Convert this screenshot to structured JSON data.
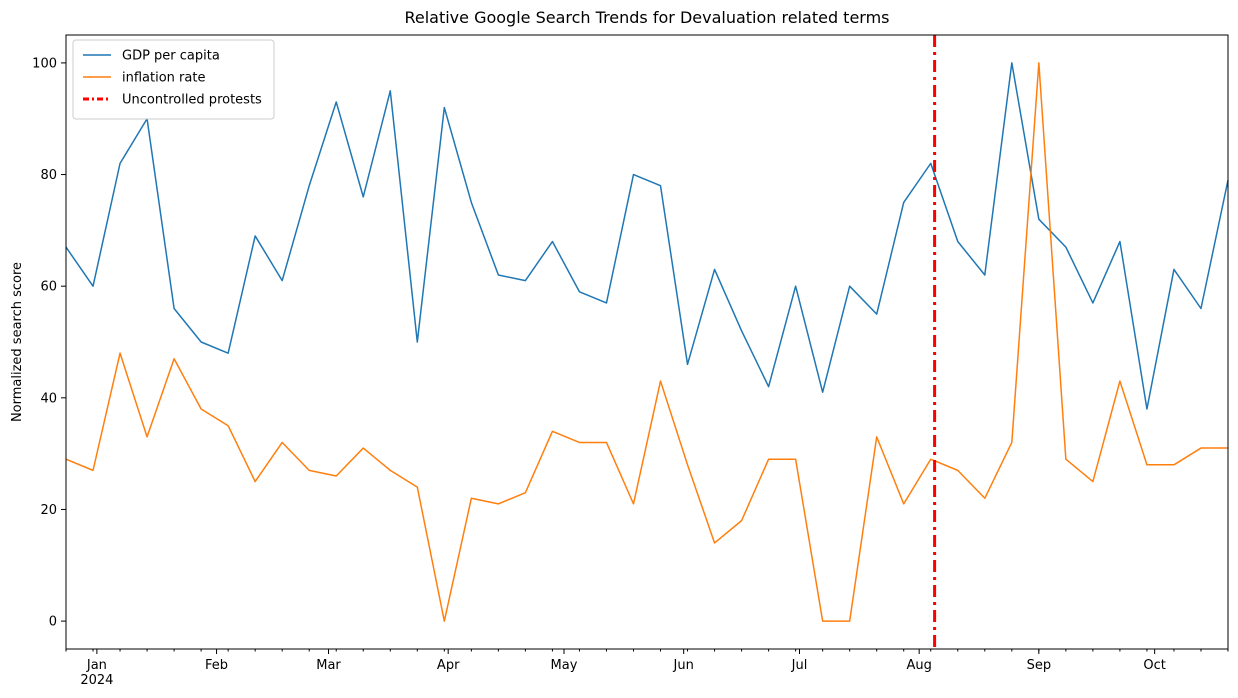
{
  "chart_data": {
    "type": "line",
    "title": "Relative Google Search Trends for Devaluation related terms",
    "xlabel": "",
    "ylabel": "Normalized search score",
    "ylim": [
      -5,
      105
    ],
    "xlim": [
      "2023-12-24",
      "2024-10-20"
    ],
    "y_ticks": [
      0,
      20,
      40,
      60,
      80,
      100
    ],
    "x_ticks": [
      {
        "date": "2024-01-01",
        "label": "Jan",
        "sublabel": "2024"
      },
      {
        "date": "2024-02-01",
        "label": "Feb"
      },
      {
        "date": "2024-03-01",
        "label": "Mar"
      },
      {
        "date": "2024-04-01",
        "label": "Apr"
      },
      {
        "date": "2024-05-01",
        "label": "May"
      },
      {
        "date": "2024-06-01",
        "label": "Jun"
      },
      {
        "date": "2024-07-01",
        "label": "Jul"
      },
      {
        "date": "2024-08-01",
        "label": "Aug"
      },
      {
        "date": "2024-09-01",
        "label": "Sep"
      },
      {
        "date": "2024-10-01",
        "label": "Oct"
      }
    ],
    "x": [
      "2023-12-24",
      "2023-12-31",
      "2024-01-07",
      "2024-01-14",
      "2024-01-21",
      "2024-01-28",
      "2024-02-04",
      "2024-02-11",
      "2024-02-18",
      "2024-02-25",
      "2024-03-03",
      "2024-03-10",
      "2024-03-17",
      "2024-03-24",
      "2024-03-31",
      "2024-04-07",
      "2024-04-14",
      "2024-04-21",
      "2024-04-28",
      "2024-05-05",
      "2024-05-12",
      "2024-05-19",
      "2024-05-26",
      "2024-06-02",
      "2024-06-09",
      "2024-06-16",
      "2024-06-23",
      "2024-06-30",
      "2024-07-07",
      "2024-07-14",
      "2024-07-21",
      "2024-07-28",
      "2024-08-04",
      "2024-08-11",
      "2024-08-18",
      "2024-08-25",
      "2024-09-01",
      "2024-09-08",
      "2024-09-15",
      "2024-09-22",
      "2024-09-29",
      "2024-10-06",
      "2024-10-13",
      "2024-10-20"
    ],
    "series": [
      {
        "name": "GDP per capita",
        "color": "#1f77b4",
        "values": [
          67,
          60,
          82,
          90,
          56,
          50,
          48,
          69,
          61,
          78,
          93,
          76,
          95,
          50,
          92,
          75,
          62,
          61,
          68,
          59,
          57,
          80,
          78,
          46,
          63,
          52,
          42,
          60,
          41,
          60,
          55,
          75,
          82,
          68,
          62,
          100,
          72,
          67,
          57,
          68,
          38,
          63,
          56,
          79
        ]
      },
      {
        "name": "inflation rate",
        "color": "#ff7f0e",
        "values": [
          29,
          27,
          48,
          33,
          47,
          38,
          35,
          25,
          32,
          27,
          26,
          31,
          27,
          24,
          0,
          22,
          21,
          23,
          34,
          32,
          32,
          21,
          43,
          28,
          14,
          18,
          29,
          29,
          0,
          0,
          33,
          21,
          29,
          27,
          22,
          32,
          100,
          29,
          25,
          43,
          28,
          28,
          31,
          31
        ]
      }
    ],
    "annotations": [
      {
        "type": "vline",
        "date": "2024-08-05",
        "label": "Uncontrolled protests",
        "color": "#ff0000",
        "style": "dashdot"
      }
    ],
    "legend_position": "top-left",
    "grid": false
  }
}
